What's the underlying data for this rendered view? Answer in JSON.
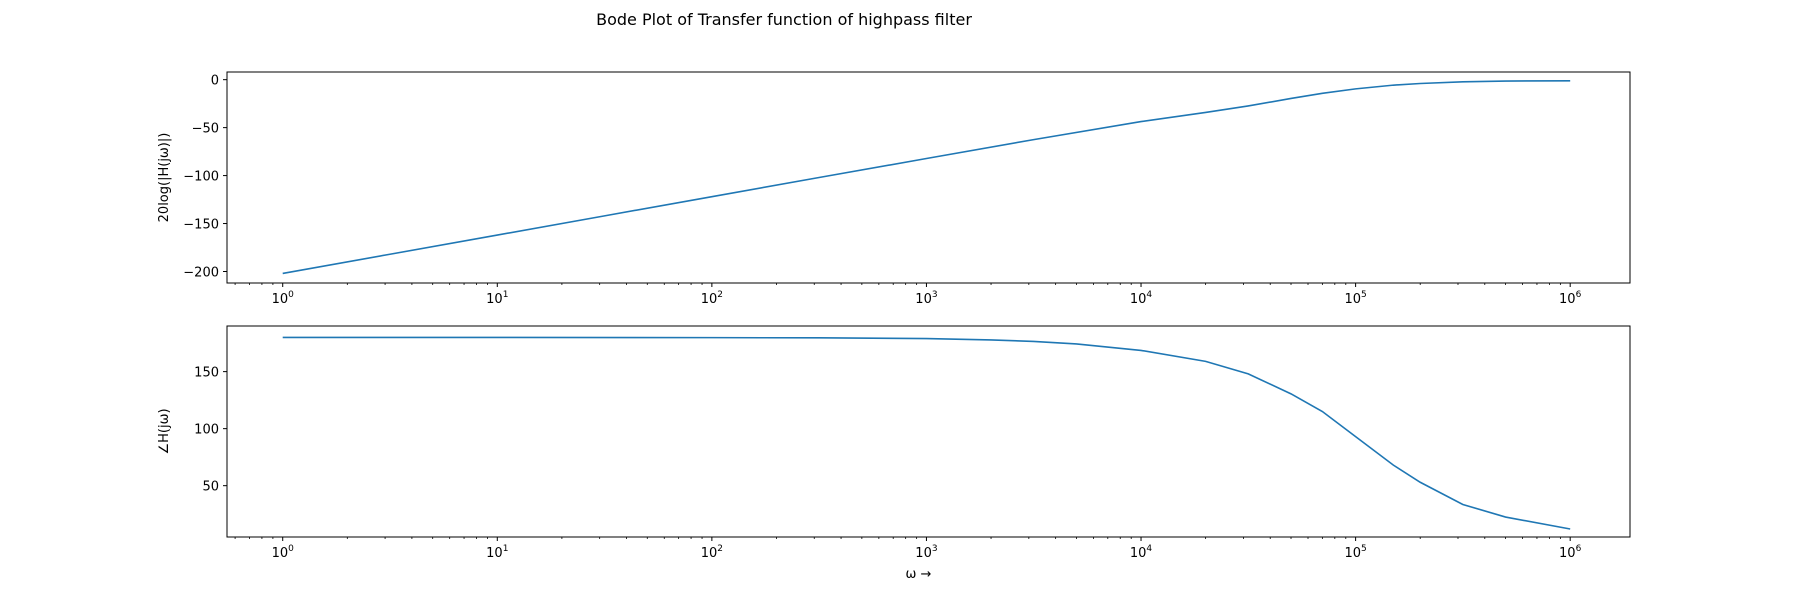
{
  "figure": {
    "title": "Bode Plot of Transfer function of highpass filter"
  },
  "chart_data": [
    {
      "type": "line",
      "panel": "magnitude",
      "ylabel": "20log(|H(jω)|)",
      "xlabel": "",
      "xscale": "log",
      "xlim": [
        0.55,
        1900000.0
      ],
      "ylim": [
        -212,
        8
      ],
      "xticks": [
        {
          "value": 1,
          "base": "10",
          "exp": "0"
        },
        {
          "value": 10,
          "base": "10",
          "exp": "1"
        },
        {
          "value": 100,
          "base": "10",
          "exp": "2"
        },
        {
          "value": 1000,
          "base": "10",
          "exp": "3"
        },
        {
          "value": 10000,
          "base": "10",
          "exp": "4"
        },
        {
          "value": 100000,
          "base": "10",
          "exp": "5"
        },
        {
          "value": 1000000,
          "base": "10",
          "exp": "6"
        }
      ],
      "yticks": [
        {
          "value": 0,
          "label": "0"
        },
        {
          "value": -50,
          "label": "−50"
        },
        {
          "value": -100,
          "label": "−100"
        },
        {
          "value": -150,
          "label": "−150"
        },
        {
          "value": -200,
          "label": "−200"
        }
      ],
      "grid": false,
      "series": [
        {
          "color": "#1f77b4",
          "x": [
            1,
            3.16,
            10,
            31.6,
            100,
            316,
            1000,
            3160,
            10000,
            20000,
            31600,
            50000,
            70000,
            100000,
            150000,
            200000,
            316000,
            500000,
            1000000
          ],
          "y": [
            -202,
            -182,
            -162,
            -142,
            -122,
            -102,
            -82.2,
            -62.5,
            -43.7,
            -34.2,
            -27.4,
            -19.6,
            -14.2,
            -9.6,
            -5.7,
            -4.0,
            -2.2,
            -1.4,
            -1.2
          ]
        }
      ]
    },
    {
      "type": "line",
      "panel": "phase",
      "ylabel": "∠H(jω)",
      "xlabel": "ω →",
      "xscale": "log",
      "xlim": [
        0.55,
        1900000.0
      ],
      "ylim": [
        5,
        190
      ],
      "xticks": [
        {
          "value": 1,
          "base": "10",
          "exp": "0"
        },
        {
          "value": 10,
          "base": "10",
          "exp": "1"
        },
        {
          "value": 100,
          "base": "10",
          "exp": "2"
        },
        {
          "value": 1000,
          "base": "10",
          "exp": "3"
        },
        {
          "value": 10000,
          "base": "10",
          "exp": "4"
        },
        {
          "value": 100000,
          "base": "10",
          "exp": "5"
        },
        {
          "value": 1000000,
          "base": "10",
          "exp": "6"
        }
      ],
      "yticks": [
        {
          "value": 150,
          "label": "150"
        },
        {
          "value": 100,
          "label": "100"
        },
        {
          "value": 50,
          "label": "50"
        }
      ],
      "grid": false,
      "series": [
        {
          "color": "#1f77b4",
          "x": [
            1,
            10,
            100,
            316,
            1000,
            2000,
            3160,
            5000,
            10000,
            20000,
            31600,
            50000,
            70000,
            100000,
            150000,
            200000,
            316000,
            500000,
            1000000
          ],
          "y": [
            180,
            180,
            179.8,
            179.6,
            179.0,
            177.8,
            176.5,
            174.3,
            168.6,
            159.0,
            148.0,
            130.5,
            115.0,
            93.0,
            68.0,
            53.0,
            33.5,
            22.5,
            12.0
          ]
        }
      ]
    }
  ]
}
